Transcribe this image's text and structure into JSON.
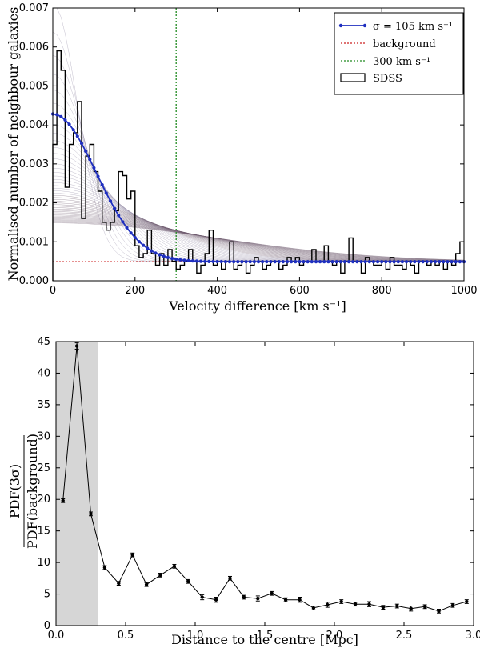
{
  "chart_data": [
    {
      "type": "line",
      "xlabel": "Velocity difference [km s⁻¹]",
      "ylabel": "Normalised number of neighbour galaxies",
      "xlim": [
        0,
        1000
      ],
      "ylim": [
        0,
        0.007
      ],
      "xticks": [
        "0",
        "200",
        "400",
        "600",
        "800",
        "1000"
      ],
      "yticks": [
        "0.000",
        "0.001",
        "0.002",
        "0.003",
        "0.004",
        "0.005",
        "0.006",
        "0.007"
      ],
      "legend": {
        "placement": "top-right",
        "entries": [
          "σ = 105 km s⁻¹",
          "background",
          "300 km s⁻¹",
          "SDSS"
        ]
      },
      "series": [
        {
          "name": "σ = 105 km s⁻¹",
          "kind": "gaussian-plus-background",
          "sigma": 105,
          "peak": 0.00428,
          "background": 0.00049,
          "color": "#1f2fbf"
        },
        {
          "name": "background",
          "kind": "hline",
          "value": 0.00049,
          "color": "#cc2222"
        },
        {
          "name": "300 km s⁻¹",
          "kind": "vline",
          "value": 300,
          "color": "#228b22"
        },
        {
          "name": "model grid",
          "kind": "gaussian-family",
          "sigma_min": 60,
          "sigma_max": 400,
          "count": 46,
          "color": "#7a6a86"
        },
        {
          "name": "SDSS",
          "kind": "step-histogram",
          "bin_width": 10,
          "values": [
            0.0035,
            0.0059,
            0.0054,
            0.0024,
            0.0035,
            0.0038,
            0.0046,
            0.0016,
            0.0032,
            0.0035,
            0.0028,
            0.0023,
            0.0015,
            0.0013,
            0.0015,
            0.0018,
            0.0028,
            0.0027,
            0.0021,
            0.0023,
            0.0009,
            0.0006,
            0.0007,
            0.0013,
            0.0007,
            0.0004,
            0.0007,
            0.0004,
            0.0008,
            0.0005,
            0.0003,
            0.0004,
            0.0005,
            0.0008,
            0.0005,
            0.0002,
            0.0004,
            0.0007,
            0.0013,
            0.0004,
            0.0005,
            0.0003,
            0.0005,
            0.001,
            0.0003,
            0.0004,
            0.0005,
            0.0002,
            0.0004,
            0.0006,
            0.0005,
            0.0003,
            0.0004,
            0.0005,
            0.0005,
            0.0003,
            0.0004,
            0.0006,
            0.0005,
            0.0006,
            0.0004,
            0.0005,
            0.0005,
            0.0008,
            0.0005,
            0.0005,
            0.0009,
            0.0005,
            0.0004,
            0.0005,
            0.0002,
            0.0005,
            0.0011,
            0.0005,
            0.0005,
            0.0002,
            0.0006,
            0.0005,
            0.0004,
            0.0004,
            0.0005,
            0.0003,
            0.0006,
            0.0004,
            0.0004,
            0.0003,
            0.0005,
            0.0004,
            0.0002,
            0.0005,
            0.0005,
            0.0004,
            0.0005,
            0.0004,
            0.0005,
            0.0003,
            0.0005,
            0.0004,
            0.0007,
            0.001
          ]
        }
      ]
    },
    {
      "type": "line",
      "xlabel": "Distance to the centre [Mpc]",
      "ylabel_num": "PDF(3σ)",
      "ylabel_den": "PDF(background)",
      "xlim": [
        0,
        3.0
      ],
      "ylim": [
        0,
        45
      ],
      "xticks": [
        "0.0",
        "0.5",
        "1.0",
        "1.5",
        "2.0",
        "2.5",
        "3.0"
      ],
      "yticks": [
        "0",
        "5",
        "10",
        "15",
        "20",
        "25",
        "30",
        "35",
        "40",
        "45"
      ],
      "shaded_region": [
        0,
        0.3
      ],
      "series": [
        {
          "name": "PDF ratio",
          "x": [
            0.05,
            0.15,
            0.25,
            0.35,
            0.45,
            0.55,
            0.65,
            0.75,
            0.85,
            0.95,
            1.05,
            1.15,
            1.25,
            1.35,
            1.45,
            1.55,
            1.65,
            1.75,
            1.85,
            1.95,
            2.05,
            2.15,
            2.25,
            2.35,
            2.45,
            2.55,
            2.65,
            2.75,
            2.85,
            2.95
          ],
          "y": [
            19.8,
            44.3,
            17.7,
            9.2,
            6.7,
            11.2,
            6.5,
            8.0,
            9.4,
            7.0,
            4.5,
            4.1,
            7.5,
            4.5,
            4.3,
            5.1,
            4.1,
            4.1,
            2.8,
            3.3,
            3.8,
            3.4,
            3.4,
            2.9,
            3.1,
            2.7,
            3.0,
            2.3,
            3.2,
            3.8
          ],
          "yerr": [
            0.3,
            0.5,
            0.3,
            0.3,
            0.3,
            0.3,
            0.3,
            0.3,
            0.3,
            0.3,
            0.4,
            0.4,
            0.3,
            0.3,
            0.4,
            0.3,
            0.3,
            0.4,
            0.3,
            0.4,
            0.3,
            0.3,
            0.4,
            0.3,
            0.3,
            0.4,
            0.3,
            0.3,
            0.3,
            0.3
          ]
        }
      ]
    }
  ]
}
